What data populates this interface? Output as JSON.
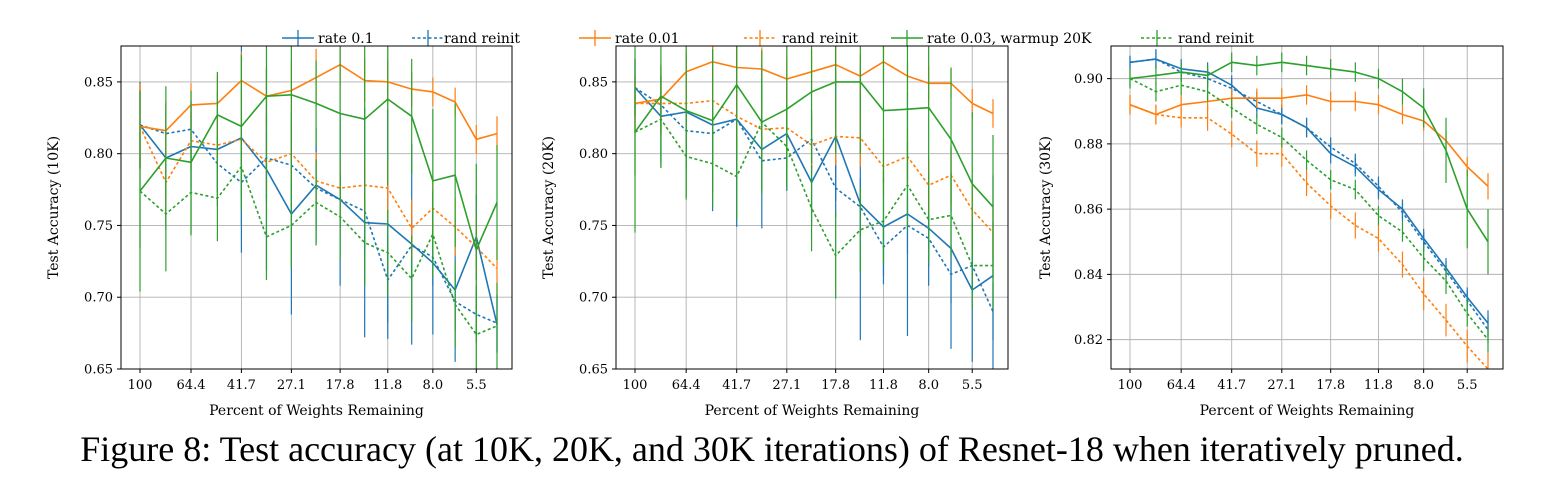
{
  "caption": "Figure 8: Test accuracy (at 10K, 20K, and 30K iterations) of Resnet-18 when iteratively pruned.",
  "legend": [
    {
      "label": "rate 0.1",
      "color": "#1f77b4",
      "dashed": false
    },
    {
      "label": "rand reinit",
      "color": "#1f77b4",
      "dashed": true
    },
    {
      "label": "rate 0.01",
      "color": "#ff7f0e",
      "dashed": false
    },
    {
      "label": "rand reinit",
      "color": "#ff7f0e",
      "dashed": true
    },
    {
      "label": "rate 0.03, warmup 20K",
      "color": "#2ca02c",
      "dashed": false
    },
    {
      "label": "rand reinit",
      "color": "#2ca02c",
      "dashed": true
    }
  ],
  "chart_data": [
    {
      "type": "line",
      "xlabel": "Percent of Weights Remaining",
      "ylabel": "Test Accuracy (10K)",
      "xscale": "log",
      "xticks": [
        100,
        64.4,
        41.7,
        27.1,
        17.8,
        11.8,
        8.0,
        5.5
      ],
      "xtick_labels": [
        "100",
        "64.4",
        "41.7",
        "27.1",
        "17.8",
        "11.8",
        "8.0",
        "5.5"
      ],
      "ylim": [
        0.65,
        0.875
      ],
      "yticks": [
        0.65,
        0.7,
        0.75,
        0.8,
        0.85
      ],
      "ytick_labels": [
        "0.65",
        "0.70",
        "0.75",
        "0.80",
        "0.85"
      ],
      "grid": true,
      "x": [
        100,
        80,
        64.4,
        51.3,
        41.7,
        33.6,
        27.1,
        21.9,
        17.8,
        14.4,
        11.8,
        9.6,
        8.0,
        6.6,
        5.5,
        4.6
      ],
      "series": [
        {
          "color": "#1f77b4",
          "dashed": false,
          "y": [
            0.82,
            0.797,
            0.805,
            0.803,
            0.811,
            0.789,
            0.758,
            0.778,
            0.768,
            0.752,
            0.751,
            0.737,
            0.724,
            0.705,
            0.742,
            0.681
          ],
          "err": [
            0.03,
            0.03,
            0.03,
            0.04,
            0.08,
            0.07,
            0.07,
            0.04,
            0.06,
            0.08,
            0.08,
            0.07,
            0.05,
            0.05,
            0.03,
            0.02
          ]
        },
        {
          "color": "#1f77b4",
          "dashed": true,
          "y": [
            0.82,
            0.814,
            0.817,
            0.793,
            0.78,
            0.797,
            0.792,
            0.776,
            0.768,
            0.76,
            0.712,
            0.736,
            0.728,
            0.697,
            0.688,
            0.682
          ],
          "err": [
            0.03,
            0.02,
            0.02,
            0.02,
            0.03,
            0.03,
            0.03,
            0.03,
            0.02,
            0.03,
            0.03,
            0.02,
            0.02,
            0.02,
            0.02,
            0.02
          ]
        },
        {
          "color": "#ff7f0e",
          "dashed": false,
          "y": [
            0.819,
            0.816,
            0.834,
            0.835,
            0.851,
            0.84,
            0.844,
            0.853,
            0.862,
            0.851,
            0.85,
            0.845,
            0.843,
            0.836,
            0.81,
            0.814
          ],
          "err": [
            0.03,
            0.02,
            0.015,
            0.02,
            0.02,
            0.02,
            0.02,
            0.02,
            0.015,
            0.015,
            0.015,
            0.012,
            0.01,
            0.01,
            0.01,
            0.012
          ]
        },
        {
          "color": "#ff7f0e",
          "dashed": true,
          "y": [
            0.819,
            0.78,
            0.809,
            0.806,
            0.81,
            0.794,
            0.8,
            0.781,
            0.776,
            0.778,
            0.776,
            0.748,
            0.762,
            0.749,
            0.735,
            0.72
          ],
          "err": [
            0.03,
            0.03,
            0.02,
            0.02,
            0.02,
            0.02,
            0.02,
            0.02,
            0.02,
            0.02,
            0.02,
            0.02,
            0.02,
            0.02,
            0.02,
            0.02
          ]
        },
        {
          "color": "#2ca02c",
          "dashed": false,
          "y": [
            0.774,
            0.797,
            0.794,
            0.827,
            0.819,
            0.84,
            0.841,
            0.835,
            0.828,
            0.824,
            0.838,
            0.826,
            0.781,
            0.785,
            0.733,
            0.766
          ],
          "err": [
            0.07,
            0.05,
            0.05,
            0.03,
            0.05,
            0.07,
            0.07,
            0.03,
            0.06,
            0.06,
            0.06,
            0.04,
            0.05,
            0.05,
            0.06,
            0.04
          ]
        },
        {
          "color": "#2ca02c",
          "dashed": true,
          "y": [
            0.774,
            0.758,
            0.773,
            0.769,
            0.791,
            0.742,
            0.75,
            0.766,
            0.756,
            0.738,
            0.731,
            0.713,
            0.744,
            0.695,
            0.674,
            0.68
          ],
          "err": [
            0.04,
            0.04,
            0.03,
            0.03,
            0.03,
            0.03,
            0.03,
            0.03,
            0.03,
            0.03,
            0.03,
            0.03,
            0.03,
            0.03,
            0.03,
            0.03
          ]
        }
      ]
    },
    {
      "type": "line",
      "xlabel": "Percent of Weights Remaining",
      "ylabel": "Test Accuracy (20K)",
      "xscale": "log",
      "xticks": [
        100,
        64.4,
        41.7,
        27.1,
        17.8,
        11.8,
        8.0,
        5.5
      ],
      "xtick_labels": [
        "100",
        "64.4",
        "41.7",
        "27.1",
        "17.8",
        "11.8",
        "8.0",
        "5.5"
      ],
      "ylim": [
        0.65,
        0.875
      ],
      "yticks": [
        0.65,
        0.7,
        0.75,
        0.8,
        0.85
      ],
      "ytick_labels": [
        "0.65",
        "0.70",
        "0.75",
        "0.80",
        "0.85"
      ],
      "grid": true,
      "x": [
        100,
        80,
        64.4,
        51.3,
        41.7,
        33.6,
        27.1,
        21.9,
        17.8,
        14.4,
        11.8,
        9.6,
        8.0,
        6.6,
        5.5,
        4.6
      ],
      "series": [
        {
          "color": "#1f77b4",
          "dashed": false,
          "y": [
            0.846,
            0.826,
            0.829,
            0.82,
            0.824,
            0.803,
            0.814,
            0.78,
            0.812,
            0.765,
            0.749,
            0.758,
            0.748,
            0.734,
            0.705,
            0.715
          ],
          "err": [
            0.02,
            0.035,
            0.04,
            0.06,
            0.075,
            0.055,
            0.04,
            0.03,
            0.045,
            0.095,
            0.04,
            0.085,
            0.04,
            0.07,
            0.05,
            0.07
          ]
        },
        {
          "color": "#1f77b4",
          "dashed": true,
          "y": [
            0.846,
            0.834,
            0.816,
            0.814,
            0.824,
            0.795,
            0.797,
            0.81,
            0.776,
            0.763,
            0.735,
            0.75,
            0.741,
            0.716,
            0.722,
            0.69
          ],
          "err": [
            0.02,
            0.02,
            0.02,
            0.02,
            0.02,
            0.02,
            0.02,
            0.02,
            0.02,
            0.02,
            0.02,
            0.02,
            0.02,
            0.02,
            0.02,
            0.02
          ]
        },
        {
          "color": "#ff7f0e",
          "dashed": false,
          "y": [
            0.835,
            0.838,
            0.857,
            0.864,
            0.86,
            0.859,
            0.852,
            0.857,
            0.862,
            0.854,
            0.864,
            0.854,
            0.849,
            0.849,
            0.835,
            0.828
          ],
          "err": [
            0.02,
            0.025,
            0.015,
            0.015,
            0.015,
            0.015,
            0.015,
            0.015,
            0.015,
            0.015,
            0.015,
            0.01,
            0.012,
            0.01,
            0.01,
            0.01
          ]
        },
        {
          "color": "#ff7f0e",
          "dashed": true,
          "y": [
            0.835,
            0.835,
            0.835,
            0.837,
            0.826,
            0.817,
            0.818,
            0.806,
            0.812,
            0.811,
            0.791,
            0.798,
            0.778,
            0.785,
            0.761,
            0.745
          ],
          "err": [
            0.02,
            0.02,
            0.02,
            0.02,
            0.02,
            0.02,
            0.02,
            0.02,
            0.02,
            0.02,
            0.02,
            0.02,
            0.02,
            0.02,
            0.02,
            0.02
          ]
        },
        {
          "color": "#2ca02c",
          "dashed": false,
          "y": [
            0.815,
            0.84,
            0.83,
            0.823,
            0.848,
            0.822,
            0.831,
            0.843,
            0.85,
            0.85,
            0.83,
            0.831,
            0.832,
            0.81,
            0.779,
            0.763
          ],
          "err": [
            0.07,
            0.05,
            0.06,
            0.05,
            0.06,
            0.05,
            0.05,
            0.05,
            0.05,
            0.05,
            0.05,
            0.05,
            0.05,
            0.05,
            0.05,
            0.05
          ]
        },
        {
          "color": "#2ca02c",
          "dashed": true,
          "y": [
            0.815,
            0.824,
            0.798,
            0.793,
            0.784,
            0.822,
            0.805,
            0.762,
            0.729,
            0.747,
            0.753,
            0.778,
            0.754,
            0.757,
            0.722,
            0.722
          ],
          "err": [
            0.03,
            0.03,
            0.03,
            0.03,
            0.03,
            0.03,
            0.03,
            0.03,
            0.03,
            0.03,
            0.03,
            0.03,
            0.03,
            0.03,
            0.03,
            0.03
          ]
        }
      ]
    },
    {
      "type": "line",
      "xlabel": "Percent of Weights Remaining",
      "ylabel": "Test Accuracy (30K)",
      "xscale": "log",
      "xticks": [
        100,
        64.4,
        41.7,
        27.1,
        17.8,
        11.8,
        8.0,
        5.5
      ],
      "xtick_labels": [
        "100",
        "64.4",
        "41.7",
        "27.1",
        "17.8",
        "11.8",
        "8.0",
        "5.5"
      ],
      "ylim": [
        0.811,
        0.91
      ],
      "yticks": [
        0.82,
        0.84,
        0.86,
        0.88,
        0.9
      ],
      "ytick_labels": [
        "0.82",
        "0.84",
        "0.86",
        "0.88",
        "0.90"
      ],
      "grid": true,
      "x": [
        100,
        80,
        64.4,
        51.3,
        41.7,
        33.6,
        27.1,
        21.9,
        17.8,
        14.4,
        11.8,
        9.6,
        8.0,
        6.6,
        5.5,
        4.6
      ],
      "series": [
        {
          "color": "#1f77b4",
          "dashed": false,
          "y": [
            0.905,
            0.906,
            0.903,
            0.902,
            0.898,
            0.891,
            0.889,
            0.885,
            0.877,
            0.873,
            0.866,
            0.86,
            0.851,
            0.842,
            0.833,
            0.825
          ],
          "err": [
            0.002,
            0.003,
            0.003,
            0.003,
            0.003,
            0.003,
            0.003,
            0.003,
            0.003,
            0.003,
            0.003,
            0.003,
            0.003,
            0.003,
            0.003,
            0.004
          ]
        },
        {
          "color": "#1f77b4",
          "dashed": true,
          "y": [
            0.905,
            0.906,
            0.902,
            0.9,
            0.897,
            0.893,
            0.889,
            0.885,
            0.879,
            0.874,
            0.867,
            0.859,
            0.85,
            0.841,
            0.832,
            0.823
          ],
          "err": [
            0.002,
            0.003,
            0.003,
            0.003,
            0.003,
            0.003,
            0.003,
            0.003,
            0.003,
            0.003,
            0.003,
            0.003,
            0.003,
            0.003,
            0.003,
            0.004
          ]
        },
        {
          "color": "#ff7f0e",
          "dashed": false,
          "y": [
            0.892,
            0.889,
            0.892,
            0.893,
            0.894,
            0.894,
            0.894,
            0.895,
            0.893,
            0.893,
            0.892,
            0.889,
            0.887,
            0.881,
            0.873,
            0.867
          ],
          "err": [
            0.003,
            0.003,
            0.003,
            0.003,
            0.003,
            0.003,
            0.003,
            0.003,
            0.003,
            0.003,
            0.003,
            0.003,
            0.003,
            0.003,
            0.003,
            0.004
          ]
        },
        {
          "color": "#ff7f0e",
          "dashed": true,
          "y": [
            0.892,
            0.889,
            0.888,
            0.888,
            0.883,
            0.877,
            0.877,
            0.868,
            0.861,
            0.855,
            0.851,
            0.843,
            0.834,
            0.826,
            0.818,
            0.811
          ],
          "err": [
            0.003,
            0.003,
            0.003,
            0.004,
            0.004,
            0.004,
            0.004,
            0.004,
            0.004,
            0.004,
            0.004,
            0.004,
            0.005,
            0.005,
            0.005,
            0.005
          ]
        },
        {
          "color": "#2ca02c",
          "dashed": false,
          "y": [
            0.9,
            0.901,
            0.902,
            0.901,
            0.905,
            0.904,
            0.905,
            0.904,
            0.903,
            0.902,
            0.9,
            0.896,
            0.891,
            0.878,
            0.86,
            0.85
          ],
          "err": [
            0.003,
            0.003,
            0.003,
            0.003,
            0.003,
            0.003,
            0.003,
            0.003,
            0.003,
            0.003,
            0.003,
            0.004,
            0.006,
            0.01,
            0.012,
            0.01
          ]
        },
        {
          "color": "#2ca02c",
          "dashed": true,
          "y": [
            0.9,
            0.896,
            0.898,
            0.896,
            0.891,
            0.886,
            0.882,
            0.875,
            0.869,
            0.866,
            0.858,
            0.853,
            0.845,
            0.838,
            0.828,
            0.82
          ],
          "err": [
            0.003,
            0.003,
            0.003,
            0.003,
            0.003,
            0.003,
            0.003,
            0.003,
            0.003,
            0.003,
            0.003,
            0.003,
            0.004,
            0.004,
            0.004,
            0.004
          ]
        }
      ]
    }
  ]
}
